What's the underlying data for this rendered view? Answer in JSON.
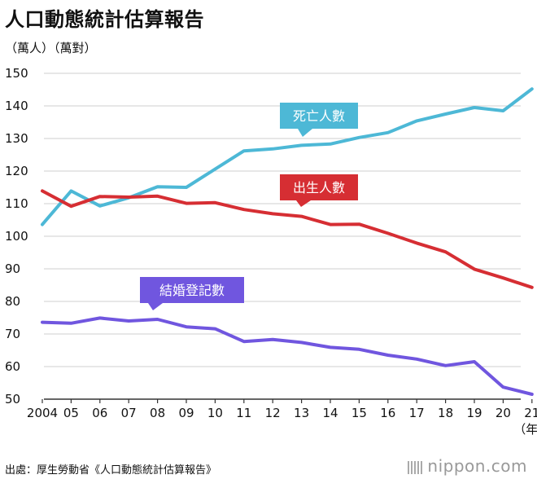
{
  "title": "人口動態統計估算報告",
  "unit_label": "（萬人）（萬對）",
  "source": "出處：厚生勞動省《人口動態統計估算報告》",
  "brand": "nippon.com",
  "chart_data": {
    "type": "line",
    "title": "人口動態統計估算報告",
    "ylabel": "（萬人）（萬對）",
    "xlabel": "（年）",
    "ylim": [
      50,
      150
    ],
    "yticks": [
      "150",
      "140",
      "130",
      "120",
      "110",
      "100",
      "90",
      "80",
      "70",
      "60",
      "50"
    ],
    "x_tick_labels": [
      "2004",
      "05",
      "06",
      "07",
      "08",
      "09",
      "10",
      "11",
      "12",
      "13",
      "14",
      "15",
      "16",
      "17",
      "18",
      "19",
      "20",
      "21"
    ],
    "x": [
      2004,
      2005,
      2006,
      2007,
      2008,
      2009,
      2010,
      2011,
      2012,
      2013,
      2014,
      2015,
      2016,
      2017,
      2018,
      2019,
      2020,
      2021
    ],
    "grid": true,
    "series": [
      {
        "name": "死亡人數",
        "color": "#4db8d6",
        "values": [
          103.6,
          113.9,
          109.3,
          111.8,
          115.2,
          115.0,
          120.6,
          126.2,
          126.8,
          127.9,
          128.3,
          130.3,
          131.8,
          135.4,
          137.5,
          139.5,
          138.5,
          145.2
        ]
      },
      {
        "name": "出生人數",
        "color": "#d62e33",
        "values": [
          113.9,
          109.2,
          112.2,
          112.0,
          112.3,
          110.1,
          110.3,
          108.2,
          106.9,
          106.1,
          103.6,
          103.7,
          100.9,
          97.9,
          95.2,
          89.9,
          87.2,
          84.3
        ]
      },
      {
        "name": "結婚登記數",
        "color": "#7056df",
        "values": [
          73.6,
          73.3,
          74.9,
          74.0,
          74.5,
          72.2,
          71.6,
          67.7,
          68.3,
          67.4,
          65.9,
          65.3,
          63.5,
          62.3,
          60.3,
          61.5,
          53.7,
          51.5
        ]
      }
    ]
  }
}
